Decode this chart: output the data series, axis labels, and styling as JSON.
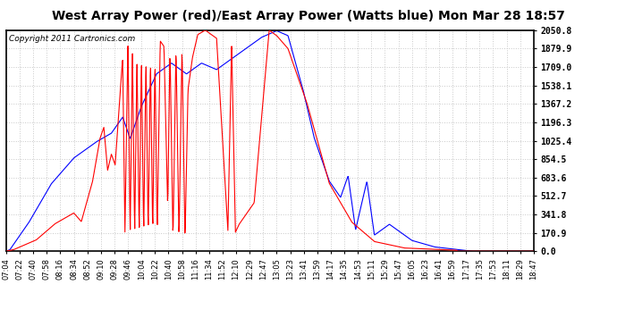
{
  "title": "West Array Power (red)/East Array Power (Watts blue) Mon Mar 28 18:57",
  "copyright": "Copyright 2011 Cartronics.com",
  "yticks": [
    0.0,
    170.9,
    341.8,
    512.7,
    683.6,
    854.5,
    1025.4,
    1196.3,
    1367.2,
    1538.1,
    1709.0,
    1879.9,
    2050.8
  ],
  "ymax": 2050.8,
  "ymin": 0.0,
  "bg_color": "#ffffff",
  "grid_color": "#c8c8c8",
  "red_color": "#ff0000",
  "blue_color": "#0000ff",
  "title_fontsize": 10,
  "copyright_fontsize": 6.5,
  "xtick_fontsize": 6,
  "ytick_fontsize": 7,
  "xtick_labels": [
    "07:04",
    "07:22",
    "07:40",
    "07:58",
    "08:16",
    "08:34",
    "08:52",
    "09:10",
    "09:28",
    "09:46",
    "10:04",
    "10:22",
    "10:40",
    "10:58",
    "11:16",
    "11:34",
    "11:52",
    "12:10",
    "12:29",
    "12:47",
    "13:05",
    "13:23",
    "13:41",
    "13:59",
    "14:17",
    "14:35",
    "14:53",
    "15:11",
    "15:29",
    "15:47",
    "16:05",
    "16:23",
    "16:41",
    "16:59",
    "17:17",
    "17:35",
    "17:53",
    "18:11",
    "18:29",
    "18:47"
  ]
}
